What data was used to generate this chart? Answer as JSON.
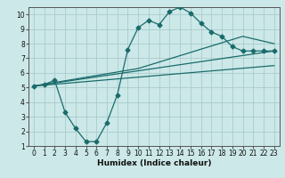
{
  "xlabel": "Humidex (Indice chaleur)",
  "bg_color": "#cce8e8",
  "grid_color": "#aacccc",
  "line_color": "#1a6b6b",
  "xlim": [
    -0.5,
    23.5
  ],
  "ylim": [
    1,
    10.5
  ],
  "xticks": [
    0,
    1,
    2,
    3,
    4,
    5,
    6,
    7,
    8,
    9,
    10,
    11,
    12,
    13,
    14,
    15,
    16,
    17,
    18,
    19,
    20,
    21,
    22,
    23
  ],
  "yticks": [
    1,
    2,
    3,
    4,
    5,
    6,
    7,
    8,
    9,
    10
  ],
  "line1_x": [
    0,
    1,
    2,
    3,
    4,
    5,
    6,
    7,
    8,
    9,
    10,
    11,
    12,
    13,
    14,
    15,
    16,
    17,
    18,
    19,
    20,
    21,
    22,
    23
  ],
  "line1_y": [
    5.1,
    5.2,
    5.5,
    3.3,
    2.2,
    1.3,
    1.3,
    2.6,
    4.5,
    7.6,
    9.1,
    9.6,
    9.3,
    10.2,
    10.5,
    10.1,
    9.4,
    8.8,
    8.5,
    7.8,
    7.5,
    7.5,
    7.5,
    7.5
  ],
  "line2_x": [
    0,
    10,
    20,
    23
  ],
  "line2_y": [
    5.1,
    6.3,
    8.5,
    8.0
  ],
  "line3_x": [
    0,
    23
  ],
  "line3_y": [
    5.1,
    7.5
  ],
  "line4_x": [
    0,
    23
  ],
  "line4_y": [
    5.1,
    6.5
  ],
  "marker_size": 2.5,
  "linewidth": 0.9,
  "tick_fontsize": 5.5,
  "xlabel_fontsize": 6.5
}
